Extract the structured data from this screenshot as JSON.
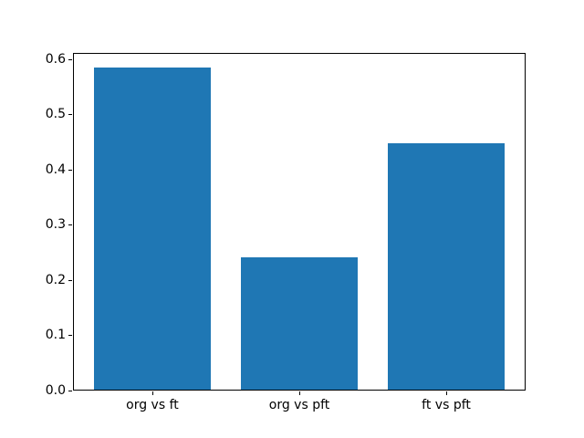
{
  "chart_data": {
    "type": "bar",
    "title": "",
    "xlabel": "",
    "ylabel": "",
    "categories": [
      "org vs ft",
      "org vs pft",
      "ft vs pft"
    ],
    "values": [
      0.585,
      0.24,
      0.447
    ],
    "bar_color": "#1f77b4",
    "ylim": [
      0,
      0.612
    ],
    "xlim": [
      -0.54,
      2.54
    ],
    "bar_width": 0.8,
    "yticks": [
      0.0,
      0.1,
      0.2,
      0.3,
      0.4,
      0.5,
      0.6
    ],
    "ytick_labels": [
      "0.0",
      "0.1",
      "0.2",
      "0.3",
      "0.4",
      "0.5",
      "0.6"
    ],
    "grid": false,
    "legend": "none",
    "spine_color": "#000000",
    "background_color": "#ffffff"
  }
}
